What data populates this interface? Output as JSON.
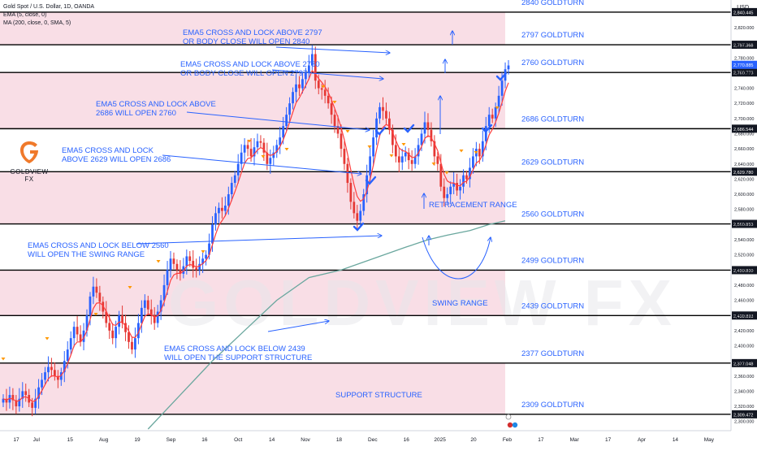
{
  "header": {
    "symbol_line": "Gold Spot / U.S. Dollar, 1D, OANDA",
    "ema_line": "EMA (5, close, 0)",
    "ma_line": "MA (200, close, 0, SMA, 5)",
    "currency": "USD"
  },
  "logo": {
    "brand": "GOLDVIEW",
    "suffix": "FX",
    "watermark": "GOLDVIEW FX"
  },
  "colors": {
    "zone_fill": "#f8d8e2",
    "turn_label": "#2962ff",
    "bull_candle": "#2962ff",
    "bear_candle": "#e53935",
    "ema_line": "#ff3d3d",
    "ma_line": "#6aa79e",
    "level_line": "#000000",
    "current_price_bg": "#2962ff",
    "arrow_triangle": "#ff9800",
    "check_mark": "#2962ff"
  },
  "chart_data": {
    "type": "candlestick",
    "ylim": [
      2290,
      2850
    ],
    "price_axis_ticks": [
      "2,300.000",
      "2,320.000",
      "2,340.000",
      "2,360.000",
      "2,380.000",
      "2,400.000",
      "2,420.000",
      "2,440.000",
      "2,460.000",
      "2,480.000",
      "2,500.000",
      "2,520.000",
      "2,540.000",
      "2,560.000",
      "2,580.000",
      "2,600.000",
      "2,620.000",
      "2,640.000",
      "2,660.000",
      "2,680.000",
      "2,700.000",
      "2,720.000",
      "2,740.000",
      "2,760.000",
      "2,780.000",
      "2,800.000",
      "2,820.000"
    ],
    "price_axis_tick_values": [
      2300,
      2320,
      2340,
      2360,
      2380,
      2400,
      2420,
      2440,
      2460,
      2480,
      2500,
      2520,
      2540,
      2560,
      2580,
      2600,
      2620,
      2640,
      2660,
      2680,
      2700,
      2720,
      2740,
      2760,
      2780,
      2800,
      2820
    ],
    "time_axis_labels": [
      "17",
      "Jul",
      "15",
      "Aug",
      "19",
      "Sep",
      "16",
      "Oct",
      "14",
      "Nov",
      "18",
      "Dec",
      "16",
      "2025",
      "20",
      "Feb",
      "17",
      "Mar",
      "17",
      "Apr",
      "14",
      "May"
    ],
    "time_axis_positions": [
      0.0,
      0.6,
      1.6,
      2.6,
      3.6,
      4.6,
      5.6,
      6.6,
      7.6,
      8.6,
      9.6,
      10.6,
      11.6,
      12.6,
      13.6,
      14.6,
      15.6,
      16.6,
      17.6,
      18.6,
      19.6,
      20.6
    ],
    "levels": [
      {
        "value": 2840.445,
        "label": "2840 GOLDTURN",
        "price_label": "2,840.445"
      },
      {
        "value": 2797.368,
        "label": "2797 GOLDTURN",
        "price_label": "2,797.368"
      },
      {
        "value": 2760.773,
        "label": "2760 GOLDTURN",
        "price_label": "2,760.773"
      },
      {
        "value": 2686.544,
        "label": "2686 GOLDTURN",
        "price_label": "2,686.544"
      },
      {
        "value": 2629.78,
        "label": "2629 GOLDTURN",
        "price_label": "2,629.780"
      },
      {
        "value": 2560.853,
        "label": "2560 GOLDTURN",
        "price_label": "2,560.853"
      },
      {
        "value": 2499.8,
        "label": "2499 GOLDTURN",
        "price_label": "2,499.800"
      },
      {
        "value": 2439.893,
        "label": "2439 GOLDTURN",
        "price_label": "2,439.893"
      },
      {
        "value": 2377.048,
        "label": "2377 GOLDTURN",
        "price_label": "2,377.048"
      },
      {
        "value": 2309.472,
        "label": "2309 GOLDTURN",
        "price_label": "2,309.472"
      }
    ],
    "current_price": {
      "value": 2770.885,
      "label": "2,770.885"
    },
    "candles_close": [
      2330,
      2325,
      2335,
      2328,
      2320,
      2330,
      2340,
      2335,
      2325,
      2318,
      2330,
      2345,
      2355,
      2365,
      2372,
      2368,
      2360,
      2355,
      2365,
      2380,
      2395,
      2410,
      2425,
      2415,
      2405,
      2420,
      2440,
      2465,
      2478,
      2470,
      2458,
      2445,
      2430,
      2420,
      2410,
      2425,
      2440,
      2430,
      2418,
      2405,
      2395,
      2410,
      2430,
      2450,
      2460,
      2448,
      2440,
      2430,
      2445,
      2460,
      2480,
      2500,
      2515,
      2508,
      2500,
      2495,
      2505,
      2518,
      2512,
      2503,
      2500,
      2508,
      2515,
      2520,
      2535,
      2560,
      2575,
      2582,
      2578,
      2585,
      2600,
      2615,
      2625,
      2640,
      2655,
      2665,
      2660,
      2650,
      2662,
      2670,
      2668,
      2655,
      2640,
      2648,
      2655,
      2665,
      2675,
      2690,
      2705,
      2720,
      2735,
      2745,
      2740,
      2752,
      2760,
      2770,
      2785,
      2750,
      2740,
      2738,
      2730,
      2720,
      2705,
      2690,
      2680,
      2660,
      2640,
      2615,
      2590,
      2575,
      2565,
      2578,
      2600,
      2625,
      2650,
      2675,
      2700,
      2715,
      2710,
      2700,
      2685,
      2665,
      2650,
      2642,
      2650,
      2655,
      2645,
      2640,
      2650,
      2665,
      2680,
      2695,
      2685,
      2670,
      2650,
      2640,
      2610,
      2595,
      2600,
      2610,
      2615,
      2605,
      2610,
      2625,
      2620,
      2635,
      2650,
      2660,
      2650,
      2670,
      2690,
      2705,
      2700,
      2715,
      2730,
      2750,
      2765,
      2770
    ],
    "ema5_note": "EMA (5) drawn from closes",
    "ma200_points": [
      [
        45,
        2290
      ],
      [
        55,
        2335
      ],
      [
        65,
        2380
      ],
      [
        75,
        2420
      ],
      [
        85,
        2460
      ],
      [
        95,
        2490
      ],
      [
        105,
        2500
      ],
      [
        115,
        2515
      ],
      [
        125,
        2530
      ],
      [
        132,
        2540
      ],
      [
        138,
        2546
      ],
      [
        145,
        2552
      ],
      [
        151,
        2560
      ],
      [
        156,
        2565
      ]
    ],
    "annotations": [
      {
        "text_lines": [
          "EMA5 CROSS AND LOCK ABOVE 2797",
          "OR BODY CLOSE WILL OPEN 2840"
        ]
      },
      {
        "text_lines": [
          "EMA5 CROSS AND LOCK ABOVE 2760",
          "OR BODY CLOSE WILL OPEN 2797"
        ]
      },
      {
        "text_lines": [
          "EMA5 CROSS AND LOCK ABOVE",
          "2686 WILL OPEN 2760"
        ]
      },
      {
        "text_lines": [
          "EMA5 CROSS AND LOCK",
          "ABOVE 2629 WILL OPEN 2686"
        ]
      },
      {
        "text_lines": [
          "EMA5 CROSS AND LOCK BELOW 2560",
          "WILL OPEN THE SWING RANGE"
        ]
      },
      {
        "text_lines": [
          "EMA5 CROSS AND LOCK BELOW 2439",
          "WILL OPEN THE SUPPORT STRUCTURE"
        ]
      },
      {
        "text_lines": [
          "RETRACEMENT RANGE"
        ]
      },
      {
        "text_lines": [
          "SWING RANGE"
        ]
      },
      {
        "text_lines": [
          "SUPPORT STRUCTURE"
        ]
      }
    ]
  }
}
